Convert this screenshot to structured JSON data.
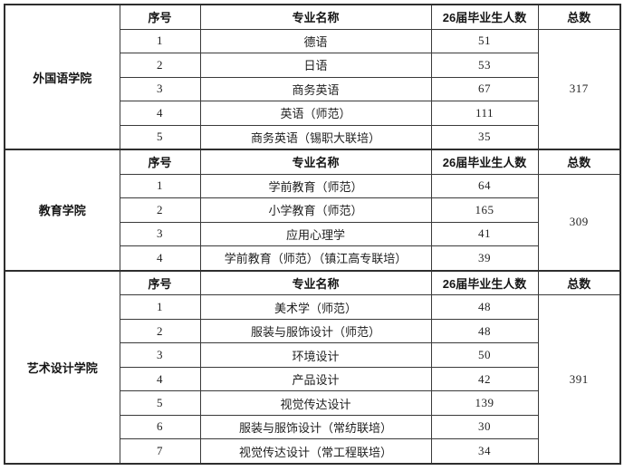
{
  "table": {
    "headers": [
      "序号",
      "专业名称",
      "26届毕业生人数",
      "总数"
    ],
    "sections": [
      {
        "department": "外国语学院",
        "total": "317",
        "rows": [
          {
            "no": "1",
            "major": "德语",
            "count": "51"
          },
          {
            "no": "2",
            "major": "日语",
            "count": "53"
          },
          {
            "no": "3",
            "major": "商务英语",
            "count": "67"
          },
          {
            "no": "4",
            "major": "英语（师范）",
            "count": "111"
          },
          {
            "no": "5",
            "major": "商务英语（锡职大联培）",
            "count": "35"
          }
        ]
      },
      {
        "department": "教育学院",
        "total": "309",
        "rows": [
          {
            "no": "1",
            "major": "学前教育（师范）",
            "count": "64"
          },
          {
            "no": "2",
            "major": "小学教育（师范）",
            "count": "165"
          },
          {
            "no": "3",
            "major": "应用心理学",
            "count": "41"
          },
          {
            "no": "4",
            "major": "学前教育（师范）（镇江高专联培）",
            "count": "39"
          }
        ]
      },
      {
        "department": "艺术设计学院",
        "total": "391",
        "rows": [
          {
            "no": "1",
            "major": "美术学（师范）",
            "count": "48"
          },
          {
            "no": "2",
            "major": "服装与服饰设计（师范）",
            "count": "48"
          },
          {
            "no": "3",
            "major": "环境设计",
            "count": "50"
          },
          {
            "no": "4",
            "major": "产品设计",
            "count": "42"
          },
          {
            "no": "5",
            "major": "视觉传达设计",
            "count": "139"
          },
          {
            "no": "6",
            "major": "服装与服饰设计（常纺联培）",
            "count": "30"
          },
          {
            "no": "7",
            "major": "视觉传达设计（常工程联培）",
            "count": "34"
          }
        ]
      }
    ]
  }
}
